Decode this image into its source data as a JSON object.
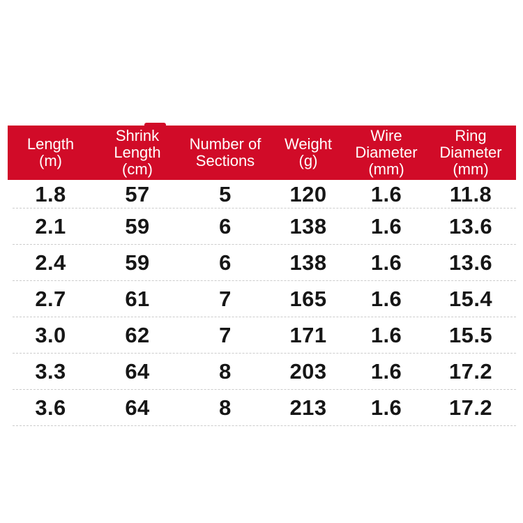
{
  "colors": {
    "header_red": "#d10b28",
    "header_text": "#ffffff",
    "row_text": "#161616",
    "separator": "#cccccc",
    "background": "#ffffff"
  },
  "table": {
    "columns": [
      {
        "id": "length",
        "label": "Length\n(m)"
      },
      {
        "id": "shrink-length",
        "label": "Shrink\nLength\n(cm)"
      },
      {
        "id": "sections",
        "label": "Number of\nSections"
      },
      {
        "id": "weight",
        "label": "Weight\n(g)"
      },
      {
        "id": "wire-diameter",
        "label": "Wire\nDiameter\n(mm)"
      },
      {
        "id": "ring-diameter",
        "label": "Ring\nDiameter\n(mm)"
      }
    ],
    "rows": [
      [
        "1.8",
        "57",
        "5",
        "120",
        "1.6",
        "11.8"
      ],
      [
        "2.1",
        "59",
        "6",
        "138",
        "1.6",
        "13.6"
      ],
      [
        "2.4",
        "59",
        "6",
        "138",
        "1.6",
        "13.6"
      ],
      [
        "2.7",
        "61",
        "7",
        "165",
        "1.6",
        "15.4"
      ],
      [
        "3.0",
        "62",
        "7",
        "171",
        "1.6",
        "15.5"
      ],
      [
        "3.3",
        "64",
        "8",
        "203",
        "1.6",
        "17.2"
      ],
      [
        "3.6",
        "64",
        "8",
        "213",
        "1.6",
        "17.2"
      ]
    ]
  },
  "chart_data": {
    "type": "table",
    "title": "",
    "columns": [
      "Length (m)",
      "Shrink Length (cm)",
      "Number of Sections",
      "Weight (g)",
      "Wire Diameter (mm)",
      "Ring Diameter (mm)"
    ],
    "rows": [
      [
        1.8,
        57,
        5,
        120,
        1.6,
        11.8
      ],
      [
        2.1,
        59,
        6,
        138,
        1.6,
        13.6
      ],
      [
        2.4,
        59,
        6,
        138,
        1.6,
        13.6
      ],
      [
        2.7,
        61,
        7,
        165,
        1.6,
        15.4
      ],
      [
        3.0,
        62,
        7,
        171,
        1.6,
        15.5
      ],
      [
        3.3,
        64,
        8,
        203,
        1.6,
        17.2
      ],
      [
        3.6,
        64,
        8,
        213,
        1.6,
        17.2
      ]
    ],
    "layout": {
      "header_background": "#d10b28",
      "header_text_color": "#ffffff",
      "row_separator": "dashed",
      "grid": "horizontal-only"
    }
  }
}
